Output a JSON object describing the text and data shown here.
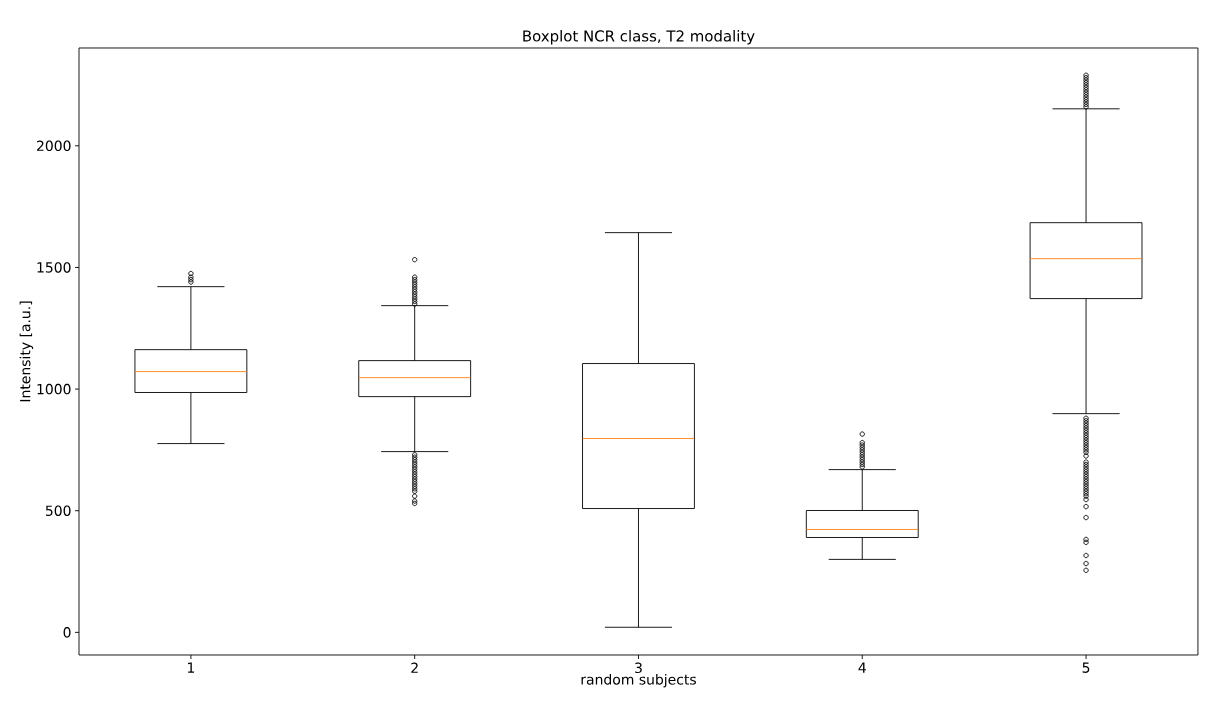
{
  "chart_data": {
    "type": "box",
    "title": "Boxplot NCR class, T2 modality",
    "xlabel": "random subjects",
    "ylabel": "Intensity [a.u.]",
    "categories": [
      "1",
      "2",
      "3",
      "4",
      "5"
    ],
    "boxes": [
      {
        "low": 776,
        "q1": 986,
        "median": 1072,
        "q3": 1162,
        "high": 1421,
        "outliers": [
          1440,
          1450,
          1460,
          1475
        ]
      },
      {
        "low": 743,
        "q1": 969,
        "median": 1047,
        "q3": 1117,
        "high": 1343,
        "outliers": [
          1350,
          1360,
          1370,
          1380,
          1390,
          1400,
          1410,
          1420,
          1430,
          1440,
          1450,
          1460,
          1532,
          730,
          720,
          710,
          700,
          690,
          680,
          670,
          660,
          650,
          640,
          630,
          620,
          610,
          600,
          590,
          580,
          560,
          540,
          530
        ]
      },
      {
        "low": 21,
        "q1": 509,
        "median": 797,
        "q3": 1105,
        "high": 1643
      },
      {
        "low": 300,
        "q1": 390,
        "median": 423,
        "q3": 501,
        "high": 669,
        "outliers": [
          680,
          690,
          700,
          710,
          720,
          730,
          740,
          750,
          760,
          770,
          780,
          815
        ]
      },
      {
        "low": 899,
        "q1": 1372,
        "median": 1536,
        "q3": 1684,
        "high": 2152,
        "outliers": [
          2160,
          2170,
          2180,
          2190,
          2200,
          2210,
          2220,
          2230,
          2240,
          2250,
          2260,
          2270,
          2280,
          2290,
          880,
          870,
          860,
          850,
          840,
          830,
          820,
          810,
          800,
          790,
          780,
          770,
          760,
          750,
          740,
          725,
          700,
          690,
          680,
          670,
          660,
          650,
          640,
          630,
          620,
          610,
          600,
          590,
          580,
          570,
          560,
          546,
          517,
          472,
          382,
          370,
          316,
          283,
          255
        ]
      }
    ],
    "ylim": [
      -93,
      2402
    ],
    "yticks": [
      0,
      500,
      1000,
      1500,
      2000
    ],
    "marker": "circle"
  }
}
